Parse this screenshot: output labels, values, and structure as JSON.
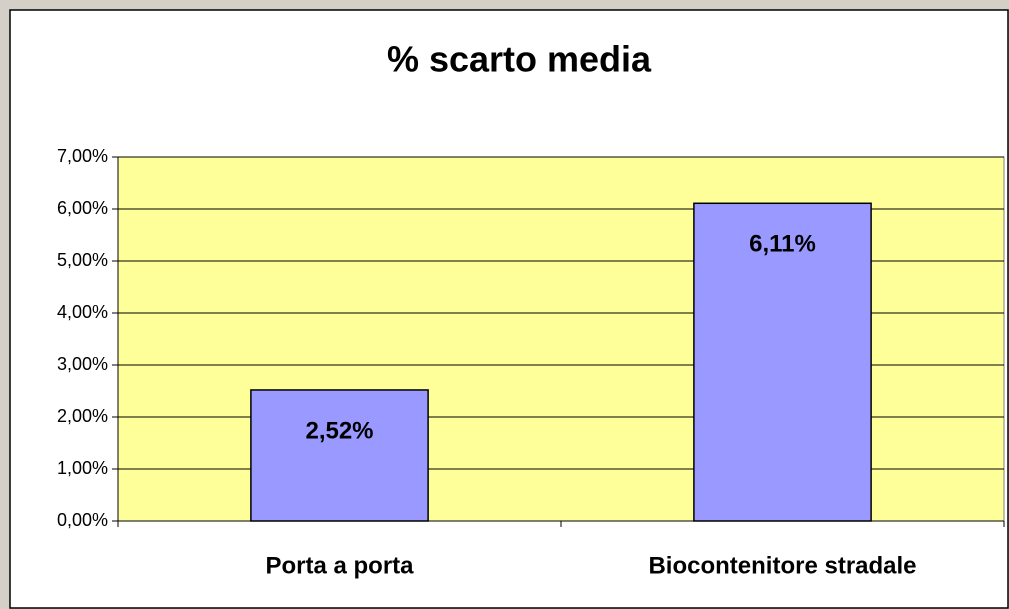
{
  "chart_data": {
    "type": "bar",
    "title": "% scarto media",
    "categories": [
      "Porta a porta",
      "Biocontenitore stradale"
    ],
    "values": [
      2.52,
      6.11
    ],
    "value_labels": [
      "2,52%",
      "6,11%"
    ],
    "color": "#9999ff",
    "plot_background": "#ffff99",
    "ylim": [
      0,
      7
    ],
    "yticks": [
      {
        "value": 0,
        "label": "0,00%"
      },
      {
        "value": 1,
        "label": "1,00%"
      },
      {
        "value": 2,
        "label": "2,00%"
      },
      {
        "value": 3,
        "label": "3,00%"
      },
      {
        "value": 4,
        "label": "4,00%"
      },
      {
        "value": 5,
        "label": "5,00%"
      },
      {
        "value": 6,
        "label": "6,00%"
      },
      {
        "value": 7,
        "label": "7,00%"
      }
    ],
    "grid": true
  }
}
